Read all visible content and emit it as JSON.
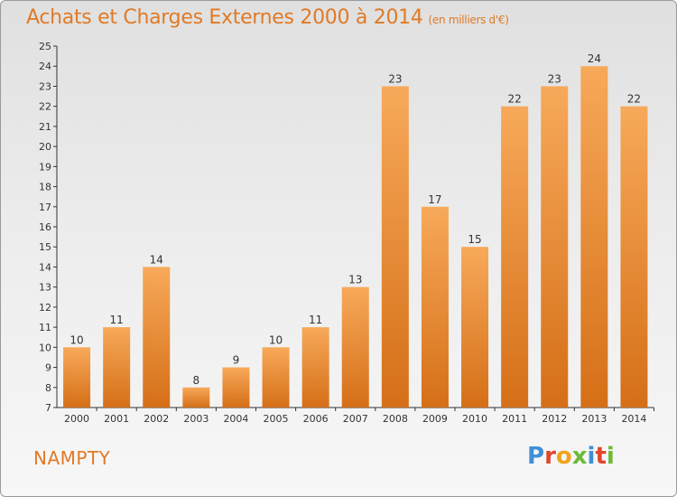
{
  "header": {
    "title": "Achats et Charges Externes 2000 à 2014",
    "subtitle": "(en milliers d'€)"
  },
  "footer": {
    "commune": "NAMPTY",
    "logo_text": "Proxiti"
  },
  "colors": {
    "accent": "#e07a26",
    "bar_light": "#f7a95a",
    "bar_dark": "#d56f17",
    "logo_letters": [
      "#3f8fd6",
      "#e0462e",
      "#f0a31d",
      "#6dba36",
      "#3f8fd6",
      "#e0462e",
      "#6dba36"
    ]
  },
  "chart_data": {
    "type": "bar",
    "title": "Achats et Charges Externes 2000 à 2014",
    "xlabel": "",
    "ylabel": "",
    "categories": [
      "2000",
      "2001",
      "2002",
      "2003",
      "2004",
      "2005",
      "2006",
      "2007",
      "2008",
      "2009",
      "2010",
      "2011",
      "2012",
      "2013",
      "2014"
    ],
    "values": [
      10,
      11,
      14,
      8,
      9,
      10,
      11,
      13,
      23,
      17,
      15,
      22,
      23,
      24,
      22
    ],
    "ylim": [
      7,
      25
    ],
    "yticks": [
      7,
      8,
      9,
      10,
      11,
      12,
      13,
      14,
      15,
      16,
      17,
      18,
      19,
      20,
      21,
      22,
      23,
      24,
      25
    ],
    "grid": false,
    "data_labels": true
  }
}
